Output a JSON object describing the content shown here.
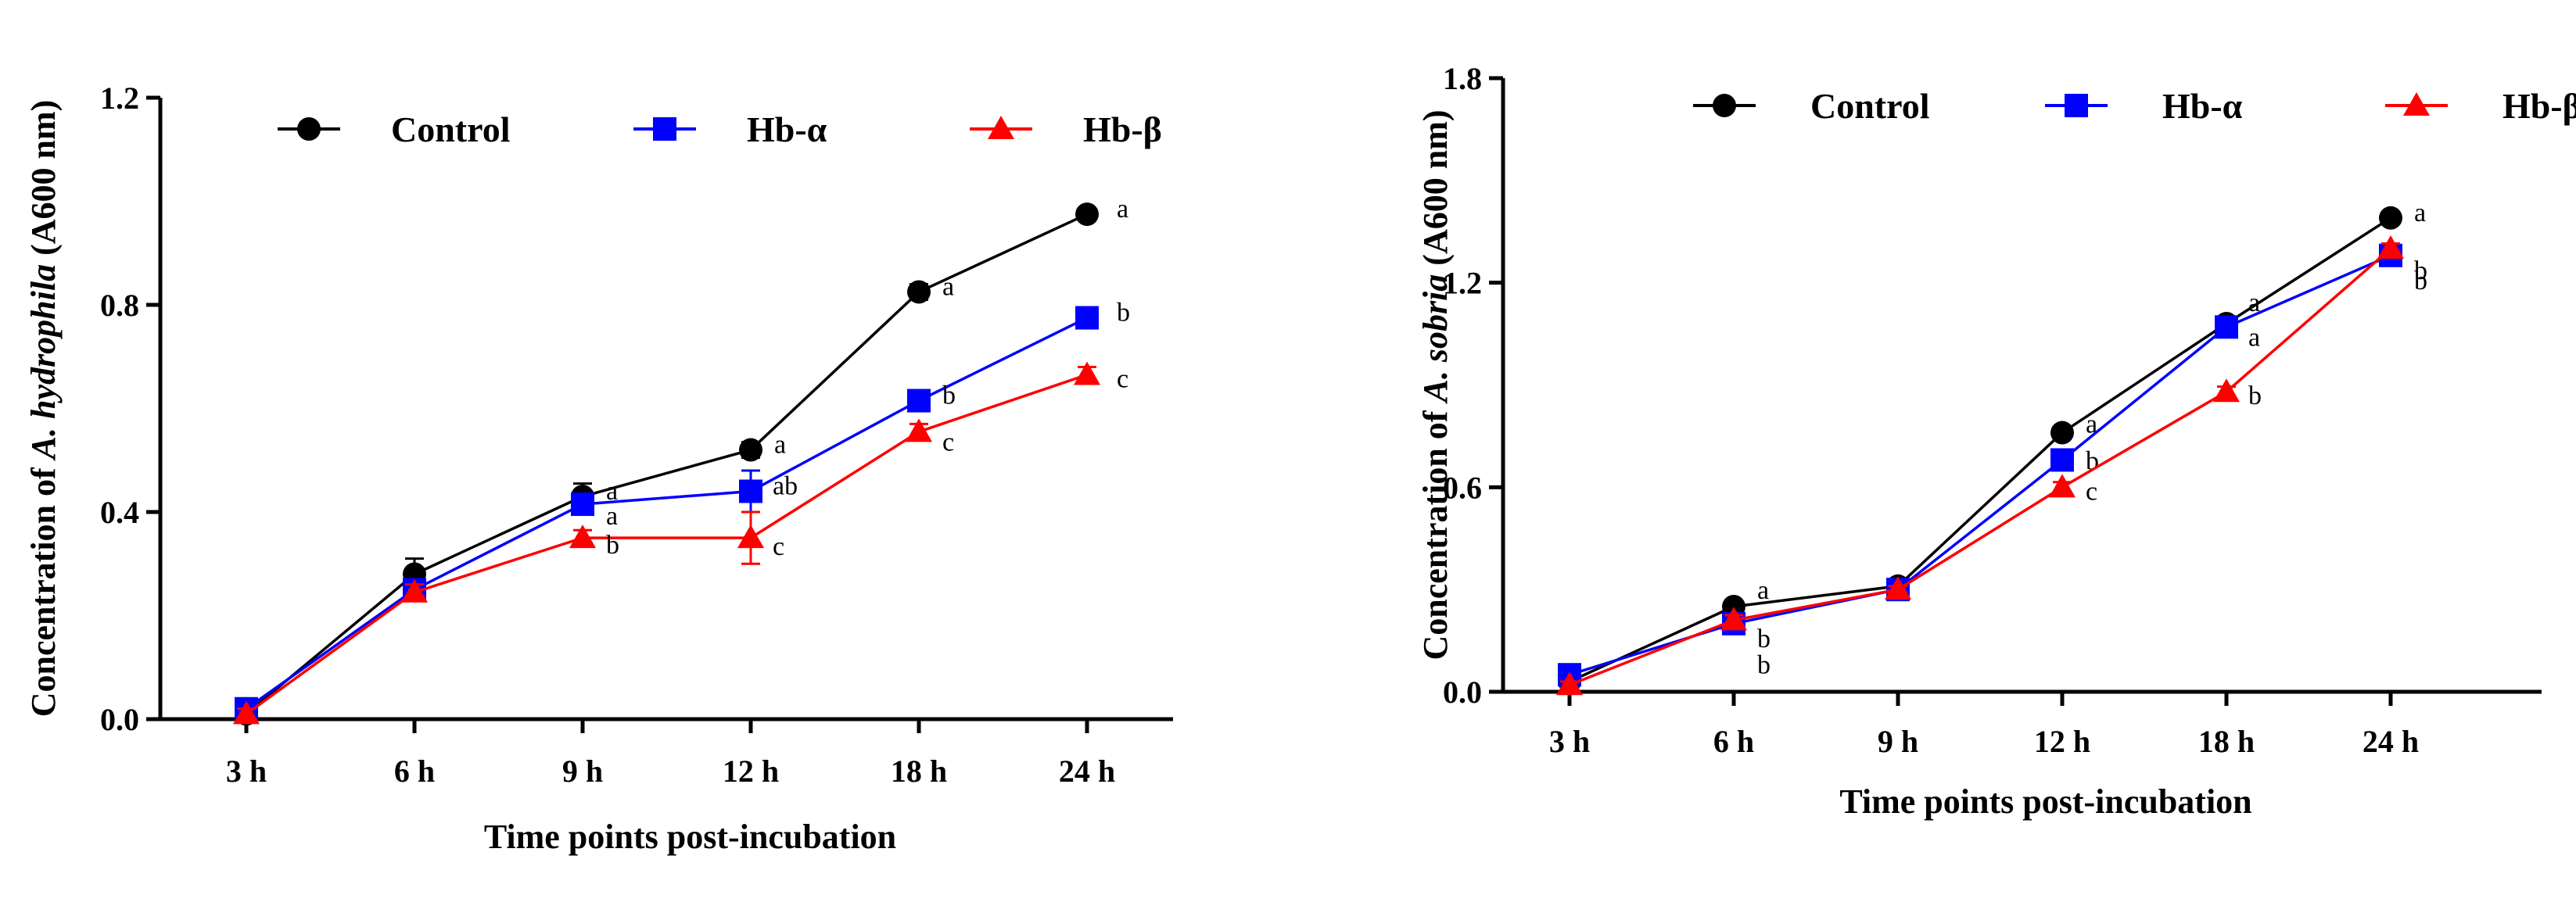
{
  "chart_data": [
    {
      "type": "line",
      "panel": "A",
      "ylabel_prefix": "Concentration of ",
      "ylabel_organism": "A. hydrophila",
      "ylabel_suffix": " (A600 nm)",
      "xlabel": "Time points post-incubation",
      "categories": [
        "3 h",
        "6 h",
        "9 h",
        "12 h",
        "18 h",
        "24 h"
      ],
      "ylim": [
        0,
        1.2
      ],
      "yticks": [
        0,
        0.4,
        0.8,
        1.2
      ],
      "ytick_labels": [
        "0.0",
        "0.4",
        "0.8",
        "1.2"
      ],
      "legend_position": "top",
      "series": [
        {
          "name": "Control",
          "color": "#000000",
          "marker": "circle",
          "values": [
            0.01,
            0.28,
            0.43,
            0.52,
            0.825,
            0.975
          ],
          "errors": [
            0.01,
            0.03,
            0.025,
            0.015,
            0.015,
            0.01
          ],
          "labels": [
            "",
            "",
            "a",
            "a",
            "a",
            "a"
          ]
        },
        {
          "name": "Hb-α",
          "color": "#0000ff",
          "marker": "square",
          "values": [
            0.02,
            0.25,
            0.415,
            0.44,
            0.615,
            0.775
          ],
          "errors": [
            0.01,
            0.015,
            0.02,
            0.04,
            0.02,
            0.015
          ],
          "labels": [
            "",
            "",
            "a",
            "ab",
            "b",
            "b"
          ]
        },
        {
          "name": "Hb-β",
          "color": "#ff0000",
          "marker": "triangle",
          "values": [
            0.01,
            0.245,
            0.35,
            0.35,
            0.555,
            0.665
          ],
          "errors": [
            0.01,
            0.015,
            0.015,
            0.05,
            0.015,
            0.015
          ],
          "labels": [
            "",
            "",
            "b",
            "c",
            "c",
            "c"
          ]
        }
      ]
    },
    {
      "type": "line",
      "panel": "B",
      "ylabel_prefix": "Concentration of ",
      "ylabel_organism": "A. sobria",
      "ylabel_suffix": " (A600 nm)",
      "xlabel": "Time points post-incubation",
      "categories": [
        "3 h",
        "6 h",
        "9 h",
        "12 h",
        "18 h",
        "24 h"
      ],
      "ylim": [
        0,
        1.8
      ],
      "yticks": [
        0,
        0.6,
        1.2,
        1.8
      ],
      "ytick_labels": [
        "0.0",
        "0.6",
        "1.2",
        "1.8"
      ],
      "legend_position": "top",
      "series": [
        {
          "name": "Control",
          "color": "#000000",
          "marker": "circle",
          "values": [
            0.03,
            0.25,
            0.31,
            0.76,
            1.08,
            1.39
          ],
          "errors": [
            0.01,
            0.015,
            0.01,
            0.015,
            0.015,
            0.015
          ],
          "labels": [
            "",
            "a",
            "",
            "a",
            "a",
            "a"
          ]
        },
        {
          "name": "Hb-α",
          "color": "#0000ff",
          "marker": "square",
          "values": [
            0.05,
            0.2,
            0.3,
            0.68,
            1.07,
            1.28
          ],
          "errors": [
            0.01,
            0.015,
            0.01,
            0.015,
            0.015,
            0.015
          ],
          "labels": [
            "",
            "b",
            "",
            "b",
            "a",
            "b"
          ]
        },
        {
          "name": "Hb-β",
          "color": "#ff0000",
          "marker": "triangle",
          "values": [
            0.02,
            0.21,
            0.3,
            0.6,
            0.88,
            1.3
          ],
          "errors": [
            0.01,
            0.015,
            0.01,
            0.015,
            0.015,
            0.015
          ],
          "labels": [
            "",
            "b",
            "",
            "c",
            "b",
            "b"
          ]
        }
      ]
    }
  ]
}
